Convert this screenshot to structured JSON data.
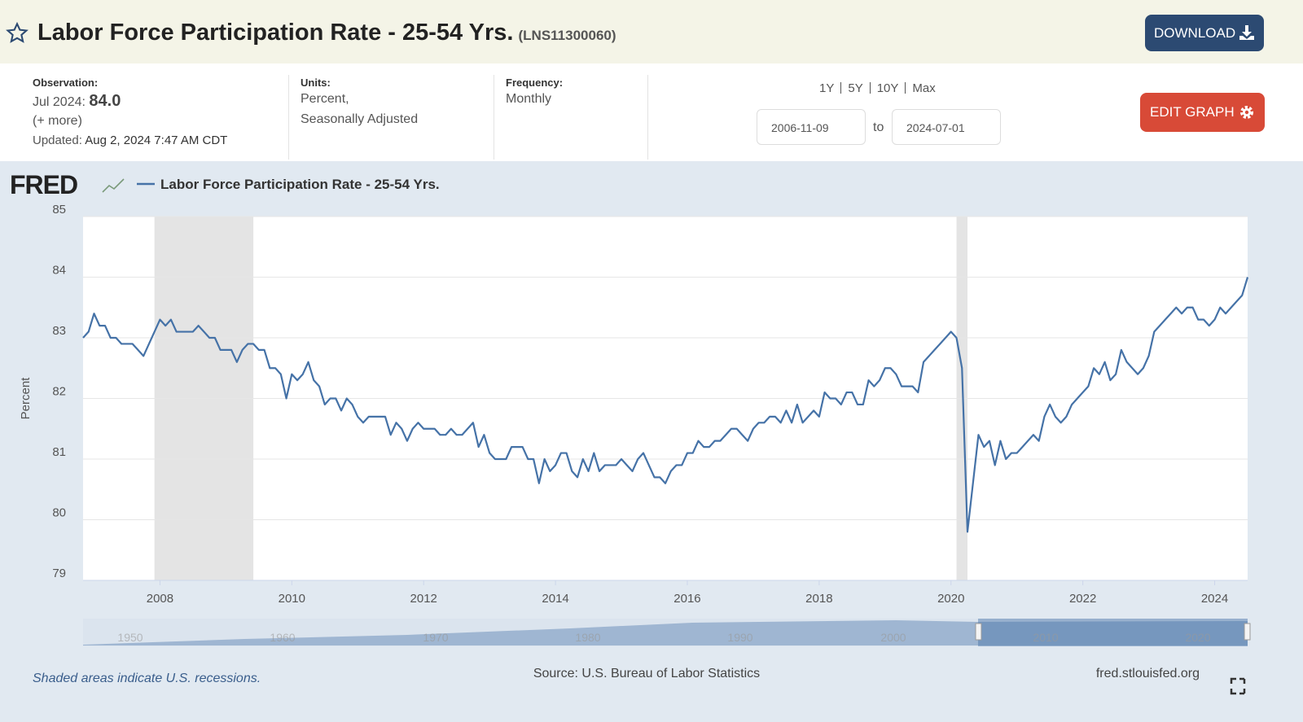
{
  "header": {
    "title": "Labor Force Participation Rate - 25-54 Yrs.",
    "series_id": "(LNS11300060)",
    "download": "DOWNLOAD"
  },
  "info": {
    "observation_label": "Observation:",
    "observation_date": "Jul 2024:",
    "observation_value": "84.0",
    "more": "(+ more)",
    "updated_label": "Updated:",
    "updated": "Aug 2, 2024 7:47 AM CDT",
    "units_label": "Units:",
    "units": [
      "Percent,",
      "Seasonally Adjusted"
    ],
    "frequency_label": "Frequency:",
    "frequency": "Monthly",
    "ranges": [
      "1Y",
      "5Y",
      "10Y",
      "Max"
    ],
    "start_date": "2006-11-09",
    "to": "to",
    "end_date": "2024-07-01",
    "edit_graph": "EDIT GRAPH"
  },
  "chart_data": {
    "type": "line",
    "logo": "FRED",
    "ylabel": "Percent",
    "x": [
      "2006-11",
      "2006-12",
      "2007-01",
      "2007-02",
      "2007-03",
      "2007-04",
      "2007-05",
      "2007-06",
      "2007-07",
      "2007-08",
      "2007-09",
      "2007-10",
      "2007-11",
      "2007-12",
      "2008-01",
      "2008-02",
      "2008-03",
      "2008-04",
      "2008-05",
      "2008-06",
      "2008-07",
      "2008-08",
      "2008-09",
      "2008-10",
      "2008-11",
      "2008-12",
      "2009-01",
      "2009-02",
      "2009-03",
      "2009-04",
      "2009-05",
      "2009-06",
      "2009-07",
      "2009-08",
      "2009-09",
      "2009-10",
      "2009-11",
      "2009-12",
      "2010-01",
      "2010-02",
      "2010-03",
      "2010-04",
      "2010-05",
      "2010-06",
      "2010-07",
      "2010-08",
      "2010-09",
      "2010-10",
      "2010-11",
      "2010-12",
      "2011-01",
      "2011-02",
      "2011-03",
      "2011-04",
      "2011-05",
      "2011-06",
      "2011-07",
      "2011-08",
      "2011-09",
      "2011-10",
      "2011-11",
      "2011-12",
      "2012-01",
      "2012-02",
      "2012-03",
      "2012-04",
      "2012-05",
      "2012-06",
      "2012-07",
      "2012-08",
      "2012-09",
      "2012-10",
      "2012-11",
      "2012-12",
      "2013-01",
      "2013-02",
      "2013-03",
      "2013-04",
      "2013-05",
      "2013-06",
      "2013-07",
      "2013-08",
      "2013-09",
      "2013-10",
      "2013-11",
      "2013-12",
      "2014-01",
      "2014-02",
      "2014-03",
      "2014-04",
      "2014-05",
      "2014-06",
      "2014-07",
      "2014-08",
      "2014-09",
      "2014-10",
      "2014-11",
      "2014-12",
      "2015-01",
      "2015-02",
      "2015-03",
      "2015-04",
      "2015-05",
      "2015-06",
      "2015-07",
      "2015-08",
      "2015-09",
      "2015-10",
      "2015-11",
      "2015-12",
      "2016-01",
      "2016-02",
      "2016-03",
      "2016-04",
      "2016-05",
      "2016-06",
      "2016-07",
      "2016-08",
      "2016-09",
      "2016-10",
      "2016-11",
      "2016-12",
      "2017-01",
      "2017-02",
      "2017-03",
      "2017-04",
      "2017-05",
      "2017-06",
      "2017-07",
      "2017-08",
      "2017-09",
      "2017-10",
      "2017-11",
      "2017-12",
      "2018-01",
      "2018-02",
      "2018-03",
      "2018-04",
      "2018-05",
      "2018-06",
      "2018-07",
      "2018-08",
      "2018-09",
      "2018-10",
      "2018-11",
      "2018-12",
      "2019-01",
      "2019-02",
      "2019-03",
      "2019-04",
      "2019-05",
      "2019-06",
      "2019-07",
      "2019-08",
      "2019-09",
      "2019-10",
      "2019-11",
      "2019-12",
      "2020-01",
      "2020-02",
      "2020-03",
      "2020-04",
      "2020-05",
      "2020-06",
      "2020-07",
      "2020-08",
      "2020-09",
      "2020-10",
      "2020-11",
      "2020-12",
      "2021-01",
      "2021-02",
      "2021-03",
      "2021-04",
      "2021-05",
      "2021-06",
      "2021-07",
      "2021-08",
      "2021-09",
      "2021-10",
      "2021-11",
      "2021-12",
      "2022-01",
      "2022-02",
      "2022-03",
      "2022-04",
      "2022-05",
      "2022-06",
      "2022-07",
      "2022-08",
      "2022-09",
      "2022-10",
      "2022-11",
      "2022-12",
      "2023-01",
      "2023-02",
      "2023-03",
      "2023-04",
      "2023-05",
      "2023-06",
      "2023-07",
      "2023-08",
      "2023-09",
      "2023-10",
      "2023-11",
      "2023-12",
      "2024-01",
      "2024-02",
      "2024-03",
      "2024-04",
      "2024-05",
      "2024-06",
      "2024-07"
    ],
    "series": [
      {
        "name": "Labor Force Participation Rate - 25-54 Yrs.",
        "color": "#4572a7",
        "values": [
          83.0,
          83.1,
          83.4,
          83.2,
          83.2,
          83.0,
          83.0,
          82.9,
          82.9,
          82.9,
          82.8,
          82.7,
          82.9,
          83.1,
          83.3,
          83.2,
          83.3,
          83.1,
          83.1,
          83.1,
          83.1,
          83.2,
          83.1,
          83.0,
          83.0,
          82.8,
          82.8,
          82.8,
          82.6,
          82.8,
          82.9,
          82.9,
          82.8,
          82.8,
          82.5,
          82.5,
          82.4,
          82.0,
          82.4,
          82.3,
          82.4,
          82.6,
          82.3,
          82.2,
          81.9,
          82.0,
          82.0,
          81.8,
          82.0,
          81.9,
          81.7,
          81.6,
          81.7,
          81.7,
          81.7,
          81.7,
          81.4,
          81.6,
          81.5,
          81.3,
          81.5,
          81.6,
          81.5,
          81.5,
          81.5,
          81.4,
          81.4,
          81.5,
          81.4,
          81.4,
          81.5,
          81.6,
          81.2,
          81.4,
          81.1,
          81.0,
          81.0,
          81.0,
          81.2,
          81.2,
          81.2,
          81.0,
          81.0,
          80.6,
          81.0,
          80.8,
          80.9,
          81.1,
          81.1,
          80.8,
          80.7,
          81.0,
          80.8,
          81.1,
          80.8,
          80.9,
          80.9,
          80.9,
          81.0,
          80.9,
          80.8,
          81.0,
          81.1,
          80.9,
          80.7,
          80.7,
          80.6,
          80.8,
          80.9,
          80.9,
          81.1,
          81.1,
          81.3,
          81.2,
          81.2,
          81.3,
          81.3,
          81.4,
          81.5,
          81.5,
          81.4,
          81.3,
          81.5,
          81.6,
          81.6,
          81.7,
          81.7,
          81.6,
          81.8,
          81.6,
          81.9,
          81.6,
          81.7,
          81.8,
          81.7,
          82.1,
          82.0,
          82.0,
          81.9,
          82.1,
          82.1,
          81.9,
          81.9,
          82.3,
          82.2,
          82.3,
          82.5,
          82.5,
          82.4,
          82.2,
          82.2,
          82.2,
          82.1,
          82.6,
          82.7,
          82.8,
          82.9,
          83.0,
          83.1,
          83.0,
          82.5,
          79.8,
          80.6,
          81.4,
          81.2,
          81.3,
          80.9,
          81.3,
          81.0,
          81.1,
          81.1,
          81.2,
          81.3,
          81.4,
          81.3,
          81.7,
          81.9,
          81.7,
          81.6,
          81.7,
          81.9,
          82.0,
          82.1,
          82.2,
          82.5,
          82.4,
          82.6,
          82.3,
          82.4,
          82.8,
          82.6,
          82.5,
          82.4,
          82.5,
          82.7,
          83.1,
          83.2,
          83.3,
          83.4,
          83.5,
          83.4,
          83.5,
          83.5,
          83.3,
          83.3,
          83.2,
          83.3,
          83.5,
          83.4,
          83.5,
          83.6,
          83.7,
          84.0
        ]
      }
    ],
    "xlim": [
      "2006-11",
      "2024-07"
    ],
    "xticks": [
      2008,
      2010,
      2012,
      2014,
      2016,
      2018,
      2020,
      2022,
      2024
    ],
    "ylim": [
      79,
      85
    ],
    "yticks": [
      79,
      80,
      81,
      82,
      83,
      84,
      85
    ],
    "grid": true,
    "recessions": [
      [
        "2007-12",
        "2009-06"
      ],
      [
        "2020-02",
        "2020-04"
      ]
    ],
    "recession_color": "#e4e4e4",
    "navigator_ticks": [
      "1950",
      "1960",
      "1970",
      "1980",
      "1990",
      "2000",
      "2010",
      "2020"
    ]
  },
  "footer": {
    "note": "Shaded areas indicate U.S. recessions.",
    "source": "Source: U.S. Bureau of Labor Statistics",
    "site": "fred.stlouisfed.org"
  }
}
